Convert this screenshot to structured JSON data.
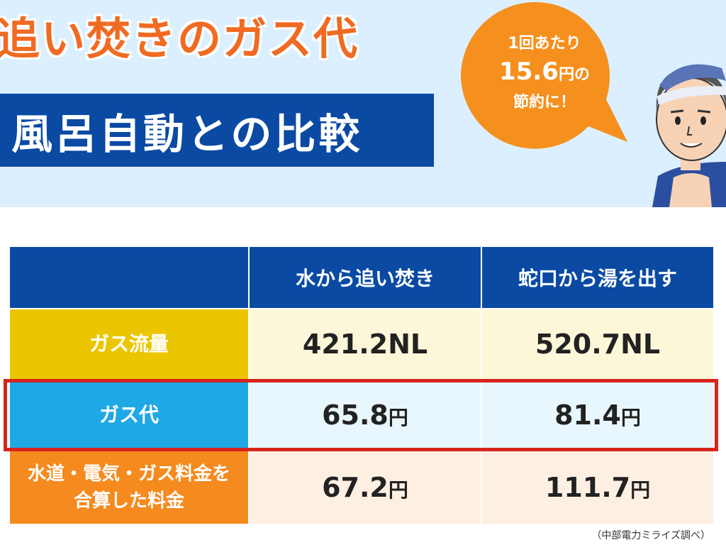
{
  "header": {
    "title": "追い焚きのガス代",
    "subtitle": "風呂自動との比較"
  },
  "bubble": {
    "line1": "1回あたり",
    "amount": "15.6",
    "amount_suffix": "円の",
    "line3": "節約に！"
  },
  "table": {
    "columns": [
      "",
      "水から追い焚き",
      "蛇口から湯を出す"
    ],
    "rows": [
      {
        "label": "ガス流量",
        "a": "421.2NL",
        "a_unit": "",
        "b": "520.7NL",
        "b_unit": ""
      },
      {
        "label": "ガス代",
        "a": "65.8",
        "a_unit": "円",
        "b": "81.4",
        "b_unit": "円"
      },
      {
        "label_line1": "水道・電気・ガス料金を",
        "label_line2": "合算した料金",
        "a": "67.2",
        "a_unit": "円",
        "b": "111.7",
        "b_unit": "円"
      }
    ]
  },
  "source": "（中部電力ミライズ調べ）",
  "colors": {
    "header_bg": "#dcefff",
    "title": "#f06a22",
    "subtitle_bg": "#0a4aa3",
    "bubble": "#f5901e",
    "gas_label": "#ebc600",
    "cost_label": "#1ea8e6",
    "total_label": "#f58a1f",
    "highlight": "#d6241e"
  }
}
